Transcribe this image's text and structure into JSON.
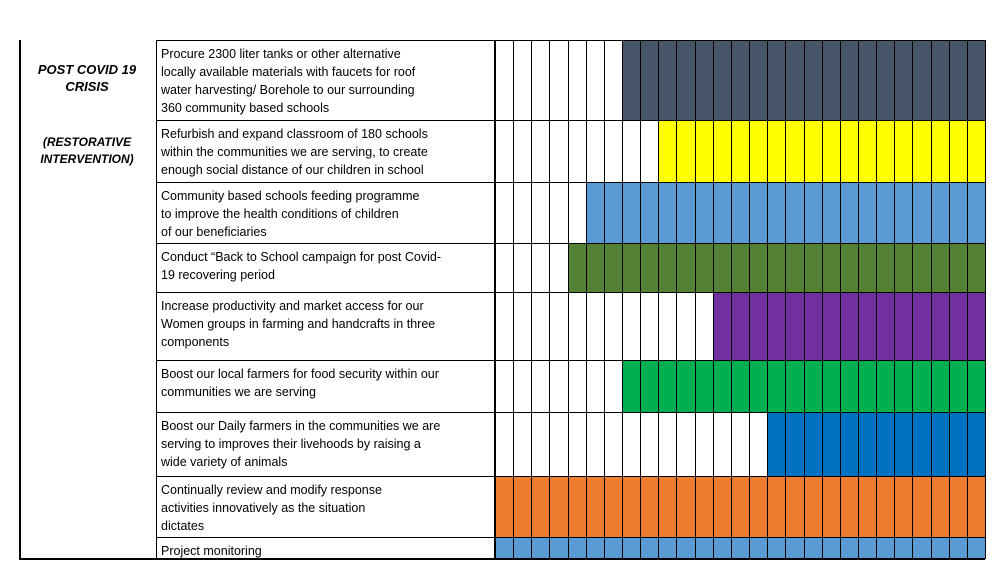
{
  "phase": {
    "title": "POST COVID 19\nCRISIS",
    "subtitle": "(RESTORATIVE\nINTERVENTION)"
  },
  "colors": {
    "slate": "#475569",
    "yellow": "#ffff00",
    "lightblue": "#5b9bd5",
    "green": "#548235",
    "purple": "#7030a0",
    "brightgreen": "#00b050",
    "blue": "#0070c0",
    "orange": "#ed7d31",
    "white": "#ffffff"
  },
  "activities": [
    {
      "text": "Procure 2300 liter tanks or other alternative\n locally available materials with faucets for roof\nwater harvesting/ Borehole to our surrounding\n360 community based schools",
      "color": "slate",
      "start_col": 7
    },
    {
      "text": "Refurbish and expand classroom of 180 schools\nwithin the communities we are serving, to create\nenough social distance of our children in school",
      "color": "yellow",
      "start_col": 9
    },
    {
      "text": "Community based schools feeding programme\n to improve the health conditions of children\nof our beneficiaries",
      "color": "lightblue",
      "start_col": 5
    },
    {
      "text": "Conduct “Back to School campaign for post Covid-\n19 recovering period",
      "color": "green",
      "start_col": 4
    },
    {
      "text": " Increase productivity and market access for our\nWomen groups in farming and handcrafts in three\ncomponents",
      "color": "purple",
      "start_col": 12
    },
    {
      "text": "Boost our local farmers for food security within our\ncommunities we are serving",
      "color": "brightgreen",
      "start_col": 7
    },
    {
      "text": "Boost our Daily farmers in the communities we are\nserving to improves their livehoods by raising a\nwide variety of animals",
      "color": "blue",
      "start_col": 15
    },
    {
      "text": "Continually review and modify response\nactivities innovatively as the situation\ndictates",
      "color": "orange",
      "start_col": 0
    },
    {
      "text": "Project monitoring",
      "color": "lightblue",
      "start_col": 0
    }
  ],
  "timeline_columns": 27
}
